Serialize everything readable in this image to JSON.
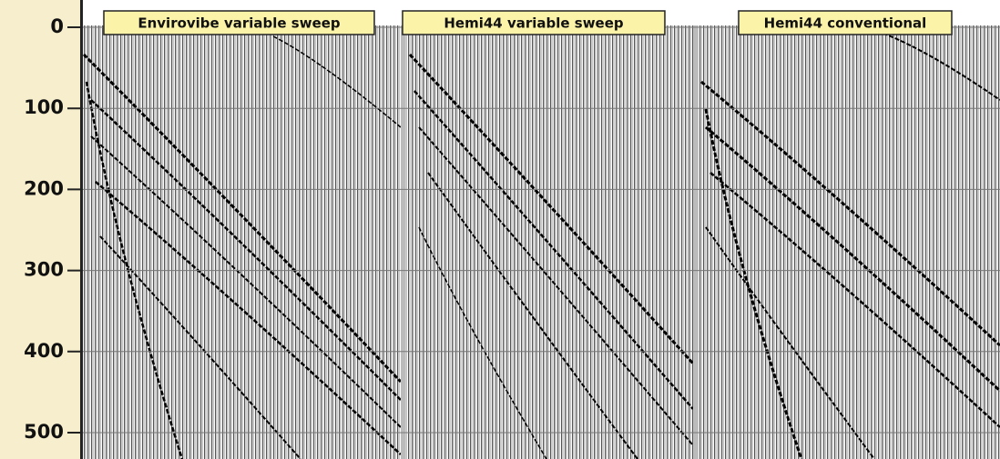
{
  "axis": {
    "ticks": [
      0,
      100,
      200,
      300,
      400,
      500
    ]
  },
  "panels": [
    {
      "label": "Envirovibe variable sweep"
    },
    {
      "label": "Hemi44 variable sweep"
    },
    {
      "label": "Hemi44 conventional"
    }
  ]
}
